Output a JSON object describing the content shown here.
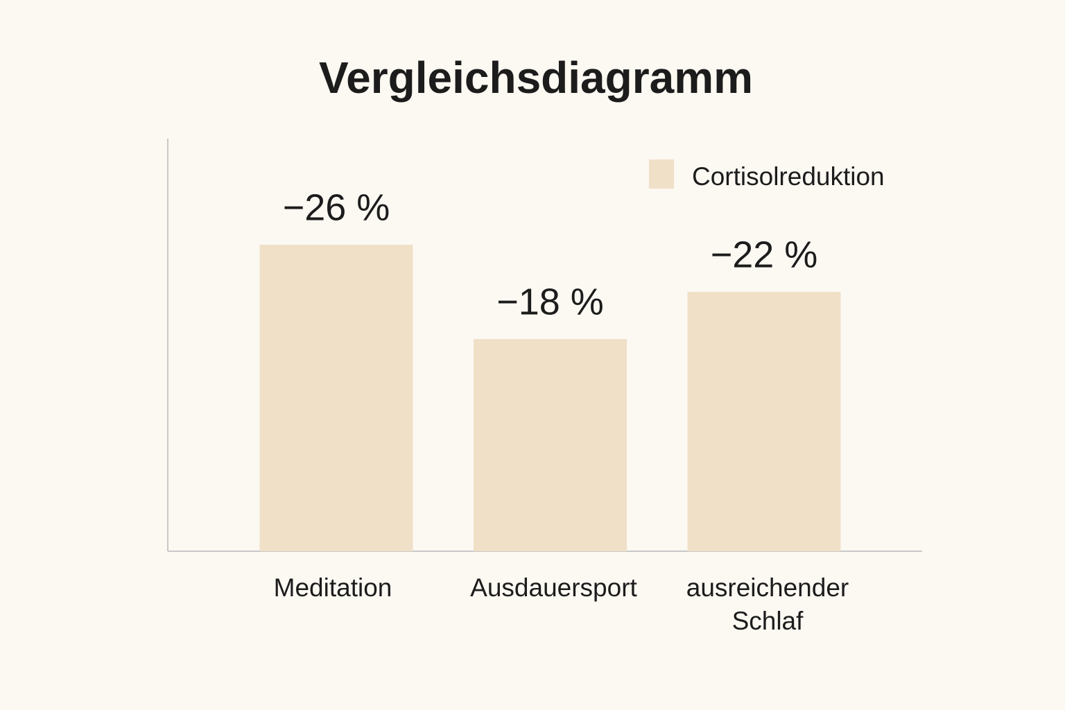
{
  "chart_data": {
    "type": "bar",
    "title": "Vergleichsdiagramm",
    "categories": [
      "Meditation",
      "Ausdauersport",
      "ausreichender Schlaf"
    ],
    "series": [
      {
        "name": "Cortisolreduktion",
        "color": "#f0e0c8",
        "values": [
          -26,
          -18,
          -22
        ],
        "value_labels": [
          "−26 %",
          "−18 %",
          "−22 %"
        ]
      }
    ],
    "ylim": [
      0,
      -35
    ],
    "legend": "upper right"
  }
}
